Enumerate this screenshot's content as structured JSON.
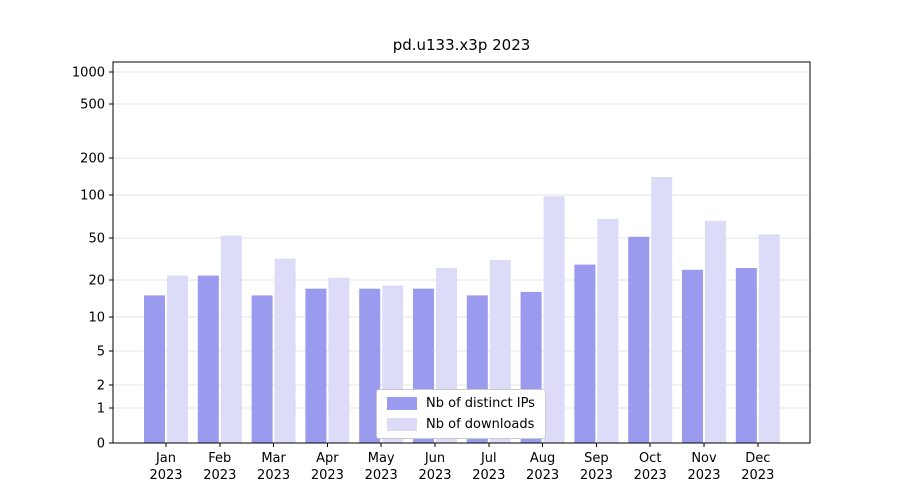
{
  "page": {
    "background": "#ffffff"
  },
  "chart_data": {
    "type": "bar",
    "title": "pd.u133.x3p 2023",
    "categories": [
      "Jan",
      "Feb",
      "Mar",
      "Apr",
      "May",
      "Jun",
      "Jul",
      "Aug",
      "Sep",
      "Oct",
      "Nov",
      "Dec"
    ],
    "x_year_label": "2023",
    "series": [
      {
        "name": "Nb of distinct IPs",
        "color": "#9a9aef",
        "values": [
          15,
          22,
          15,
          17,
          17,
          17,
          15,
          16,
          28,
          51,
          25,
          26
        ]
      },
      {
        "name": "Nb of downloads",
        "color": "#dcdcf9",
        "values": [
          22,
          52,
          32,
          21,
          18,
          26,
          31,
          98,
          68,
          140,
          66,
          53
        ]
      }
    ],
    "y_ticks": [
      0,
      1,
      2,
      5,
      10,
      20,
      50,
      100,
      200,
      500,
      1000
    ],
    "y_scale": "symlog",
    "ylim": [
      0,
      1000
    ],
    "xlabel": "",
    "ylabel": "",
    "grid": true,
    "legend_position": "lower center",
    "colors": {
      "grid": "#e6e6e6",
      "spine": "#000000",
      "tick_text": "#000000",
      "legend_border": "#c9c9c9",
      "background": "#ffffff"
    }
  }
}
